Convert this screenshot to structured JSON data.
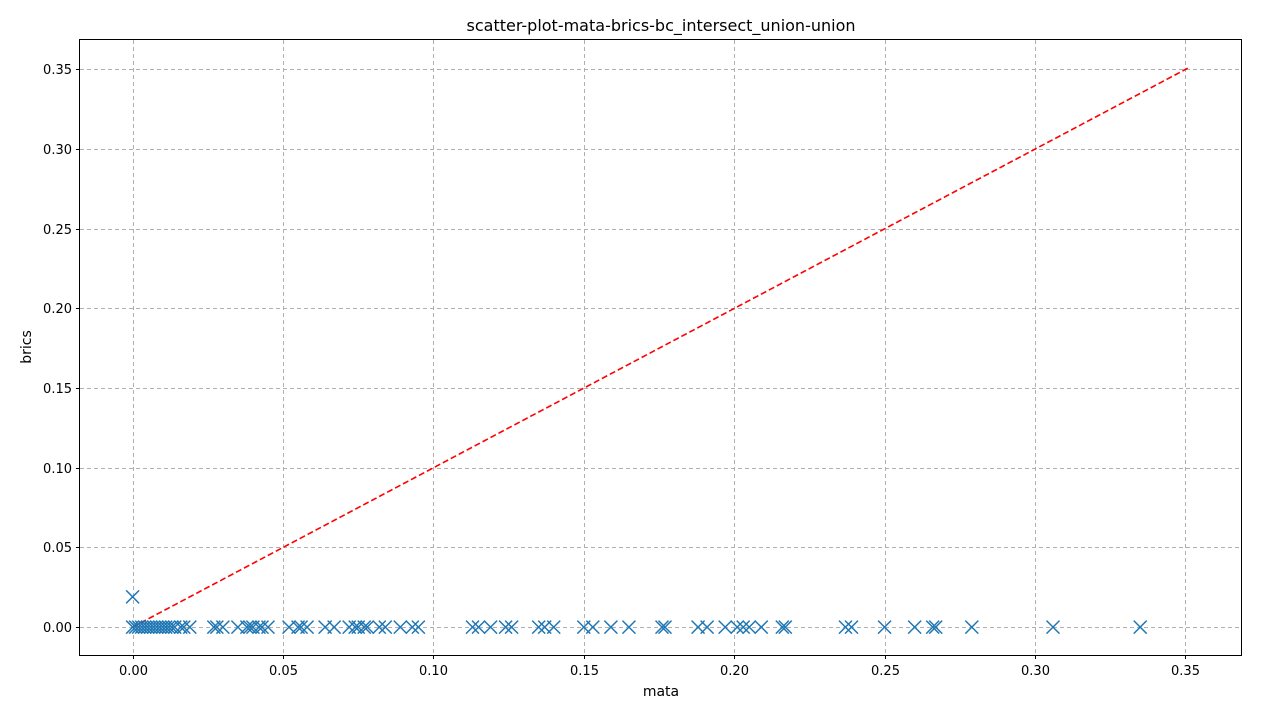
{
  "chart_data": {
    "type": "scatter",
    "title": "scatter-plot-mata-brics-bc_intersect_union-union",
    "xlabel": "mata",
    "ylabel": "brics",
    "xlim": [
      -0.0175,
      0.3685
    ],
    "ylim": [
      -0.0175,
      0.3685
    ],
    "xticks": [
      0.0,
      0.05,
      0.1,
      0.15,
      0.2,
      0.25,
      0.3,
      0.35
    ],
    "yticks": [
      0.0,
      0.05,
      0.1,
      0.15,
      0.2,
      0.25,
      0.3,
      0.35
    ],
    "xtick_labels": [
      "0.00",
      "0.05",
      "0.10",
      "0.15",
      "0.20",
      "0.25",
      "0.30",
      "0.35"
    ],
    "ytick_labels": [
      "0.00",
      "0.05",
      "0.10",
      "0.15",
      "0.20",
      "0.25",
      "0.30",
      "0.35"
    ],
    "grid": true,
    "marker": "x",
    "marker_color": "#1f77b4",
    "reference_line": {
      "x": [
        0.0,
        0.351
      ],
      "y": [
        0.0,
        0.351
      ],
      "color": "#ff0000",
      "style": "dashed"
    },
    "points": [
      {
        "x": 0.0,
        "y": 0.019
      },
      {
        "x": 0.0,
        "y": 0.0
      },
      {
        "x": 0.001,
        "y": 0.0
      },
      {
        "x": 0.002,
        "y": 0.0
      },
      {
        "x": 0.003,
        "y": 0.0
      },
      {
        "x": 0.004,
        "y": 0.0
      },
      {
        "x": 0.005,
        "y": 0.0
      },
      {
        "x": 0.006,
        "y": 0.0
      },
      {
        "x": 0.007,
        "y": 0.0
      },
      {
        "x": 0.008,
        "y": 0.0
      },
      {
        "x": 0.009,
        "y": 0.0
      },
      {
        "x": 0.01,
        "y": 0.0
      },
      {
        "x": 0.011,
        "y": 0.0
      },
      {
        "x": 0.012,
        "y": 0.0
      },
      {
        "x": 0.013,
        "y": 0.0
      },
      {
        "x": 0.014,
        "y": 0.0
      },
      {
        "x": 0.016,
        "y": 0.0
      },
      {
        "x": 0.017,
        "y": 0.0
      },
      {
        "x": 0.019,
        "y": 0.0
      },
      {
        "x": 0.027,
        "y": 0.0
      },
      {
        "x": 0.028,
        "y": 0.0
      },
      {
        "x": 0.03,
        "y": 0.0
      },
      {
        "x": 0.035,
        "y": 0.0
      },
      {
        "x": 0.038,
        "y": 0.0
      },
      {
        "x": 0.039,
        "y": 0.0
      },
      {
        "x": 0.04,
        "y": 0.0
      },
      {
        "x": 0.042,
        "y": 0.0
      },
      {
        "x": 0.043,
        "y": 0.0
      },
      {
        "x": 0.045,
        "y": 0.0
      },
      {
        "x": 0.052,
        "y": 0.0
      },
      {
        "x": 0.055,
        "y": 0.0
      },
      {
        "x": 0.056,
        "y": 0.0
      },
      {
        "x": 0.058,
        "y": 0.0
      },
      {
        "x": 0.064,
        "y": 0.0
      },
      {
        "x": 0.067,
        "y": 0.0
      },
      {
        "x": 0.072,
        "y": 0.0
      },
      {
        "x": 0.074,
        "y": 0.0
      },
      {
        "x": 0.075,
        "y": 0.0
      },
      {
        "x": 0.077,
        "y": 0.0
      },
      {
        "x": 0.078,
        "y": 0.0
      },
      {
        "x": 0.082,
        "y": 0.0
      },
      {
        "x": 0.084,
        "y": 0.0
      },
      {
        "x": 0.089,
        "y": 0.0
      },
      {
        "x": 0.093,
        "y": 0.0
      },
      {
        "x": 0.095,
        "y": 0.0
      },
      {
        "x": 0.113,
        "y": 0.0
      },
      {
        "x": 0.115,
        "y": 0.0
      },
      {
        "x": 0.119,
        "y": 0.0
      },
      {
        "x": 0.124,
        "y": 0.0
      },
      {
        "x": 0.126,
        "y": 0.0
      },
      {
        "x": 0.135,
        "y": 0.0
      },
      {
        "x": 0.137,
        "y": 0.0
      },
      {
        "x": 0.14,
        "y": 0.0
      },
      {
        "x": 0.15,
        "y": 0.0
      },
      {
        "x": 0.153,
        "y": 0.0
      },
      {
        "x": 0.159,
        "y": 0.0
      },
      {
        "x": 0.165,
        "y": 0.0
      },
      {
        "x": 0.176,
        "y": 0.0
      },
      {
        "x": 0.177,
        "y": 0.0
      },
      {
        "x": 0.188,
        "y": 0.0
      },
      {
        "x": 0.191,
        "y": 0.0
      },
      {
        "x": 0.197,
        "y": 0.0
      },
      {
        "x": 0.201,
        "y": 0.0
      },
      {
        "x": 0.203,
        "y": 0.0
      },
      {
        "x": 0.205,
        "y": 0.0
      },
      {
        "x": 0.209,
        "y": 0.0
      },
      {
        "x": 0.216,
        "y": 0.0
      },
      {
        "x": 0.217,
        "y": 0.0
      },
      {
        "x": 0.237,
        "y": 0.0
      },
      {
        "x": 0.239,
        "y": 0.0
      },
      {
        "x": 0.25,
        "y": 0.0
      },
      {
        "x": 0.26,
        "y": 0.0
      },
      {
        "x": 0.266,
        "y": 0.0
      },
      {
        "x": 0.267,
        "y": 0.0
      },
      {
        "x": 0.279,
        "y": 0.0
      },
      {
        "x": 0.306,
        "y": 0.0
      },
      {
        "x": 0.335,
        "y": 0.0
      }
    ]
  }
}
